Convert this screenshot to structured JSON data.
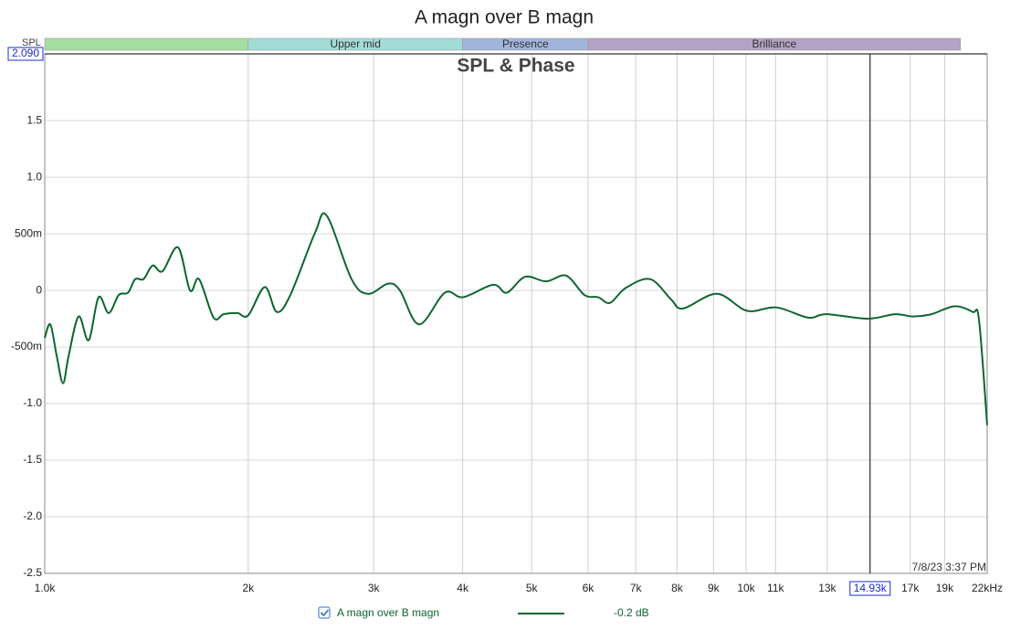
{
  "chart_data": {
    "type": "line",
    "title": "A magn over B magn",
    "subtitle": "SPL & Phase",
    "y_axis_label": "SPL",
    "timestamp": "7/8/23 3:37 PM",
    "log_x": true,
    "grid": true,
    "xlim": [
      1036,
      21800
    ],
    "ylim": [
      -2.5,
      2.09
    ],
    "xticks": [
      {
        "value": 1036,
        "label": "1.0k"
      },
      {
        "value": 2000,
        "label": "2k"
      },
      {
        "value": 3000,
        "label": "3k"
      },
      {
        "value": 4000,
        "label": "4k"
      },
      {
        "value": 5000,
        "label": "5k"
      },
      {
        "value": 6000,
        "label": "6k"
      },
      {
        "value": 7000,
        "label": "7k"
      },
      {
        "value": 8000,
        "label": "8k"
      },
      {
        "value": 9000,
        "label": "9k"
      },
      {
        "value": 10000,
        "label": "10k"
      },
      {
        "value": 11000,
        "label": "11k"
      },
      {
        "value": 13000,
        "label": "13k"
      },
      {
        "value": 17000,
        "label": "17k"
      },
      {
        "value": 19000,
        "label": "19k"
      },
      {
        "value": 21800,
        "label": "22kHz"
      }
    ],
    "yticks": [
      1.5,
      {
        "value": 1,
        "label": "1.0"
      },
      {
        "value": 0.5,
        "label": "500m"
      },
      0,
      {
        "value": -0.5,
        "label": "-500m"
      },
      {
        "value": -1,
        "label": "-1.0"
      },
      -1.5,
      {
        "value": -2,
        "label": "-2.0"
      },
      -2.5
    ],
    "x_cursor": {
      "value": 14930,
      "label": "14.93k"
    },
    "y_cursor": {
      "value": 2.09,
      "label": "2.090"
    },
    "bands": [
      {
        "label": null,
        "start": 1036,
        "end": 2000,
        "color": "#a3dea3"
      },
      {
        "label": "Upper mid",
        "start": 2000,
        "end": 4000,
        "color": "#a3dcd6"
      },
      {
        "label": "Presence",
        "start": 4000,
        "end": 6000,
        "color": "#a1b5da"
      },
      {
        "label": "Brilliance",
        "start": 6000,
        "end": 20000,
        "color": "#b3a3c6"
      }
    ],
    "legend_value": "-0.2 dB",
    "series": [
      {
        "name": "A magn over B magn",
        "color": "#0d6630",
        "x": [
          1036,
          1055,
          1077,
          1099,
          1119,
          1156,
          1194,
          1233,
          1274,
          1316,
          1356,
          1388,
          1426,
          1468,
          1516,
          1594,
          1657,
          1706,
          1788,
          1847,
          1931,
          2000,
          2110,
          2193,
          2292,
          2482,
          2578,
          2793,
          2946,
          3144,
          3266,
          3475,
          3776,
          4005,
          4414,
          4613,
          4894,
          5240,
          5590,
          5930,
          6199,
          6442,
          6770,
          7332,
          7848,
          8156,
          9099,
          10030,
          11023,
          12222,
          12968,
          14806,
          16182,
          17166,
          18204,
          19603,
          20796,
          21230,
          21800
        ],
        "values": [
          -0.42,
          -0.3,
          -0.58,
          -0.82,
          -0.58,
          -0.23,
          -0.44,
          -0.06,
          -0.2,
          -0.04,
          -0.02,
          0.1,
          0.1,
          0.22,
          0.17,
          0.38,
          0,
          0.1,
          -0.24,
          -0.21,
          -0.2,
          -0.22,
          0.03,
          -0.19,
          -0.04,
          0.51,
          0.66,
          0.1,
          -0.03,
          0.06,
          0,
          -0.3,
          -0.02,
          -0.06,
          0.05,
          -0.02,
          0.12,
          0.08,
          0.13,
          -0.04,
          -0.06,
          -0.11,
          0.02,
          0.1,
          -0.08,
          -0.16,
          -0.03,
          -0.18,
          -0.15,
          -0.24,
          -0.21,
          -0.25,
          -0.21,
          -0.23,
          -0.21,
          -0.14,
          -0.19,
          -0.26,
          -1.19
        ]
      }
    ]
  }
}
